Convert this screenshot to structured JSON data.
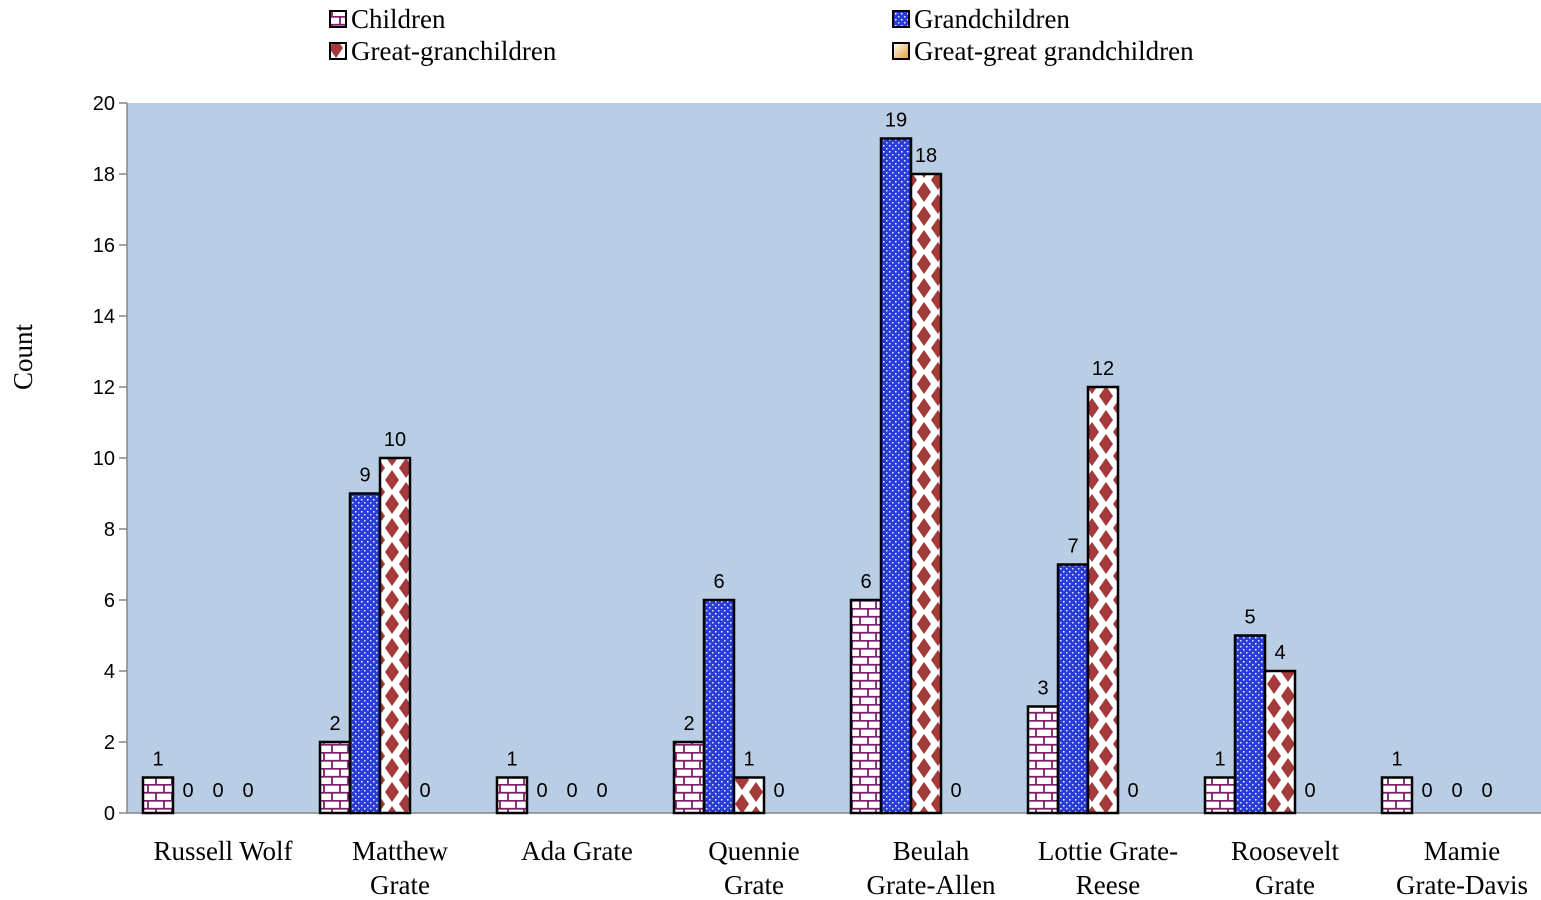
{
  "chart_data": {
    "type": "bar",
    "ylabel": "Count",
    "xlabel": "",
    "ylim": [
      0,
      20
    ],
    "yticks": [
      0,
      2,
      4,
      6,
      8,
      10,
      12,
      14,
      16,
      18,
      20
    ],
    "grid": false,
    "legend_position": "top",
    "plot_background": "#B9CDE5",
    "categories": [
      [
        "Russell Wolf"
      ],
      [
        "Matthew",
        "Grate"
      ],
      [
        "Ada Grate"
      ],
      [
        "Quennie",
        "Grate"
      ],
      [
        "Beulah",
        "Grate-Allen"
      ],
      [
        "Lottie Grate-",
        "Reese"
      ],
      [
        "Roosevelt",
        "Grate"
      ],
      [
        "Mamie",
        "Grate-Davis"
      ]
    ],
    "series": [
      {
        "name": "Children",
        "color": "#7B1F6E",
        "pattern": "brick",
        "values": [
          1,
          2,
          1,
          2,
          6,
          3,
          1,
          1
        ]
      },
      {
        "name": "Grandchildren",
        "color": "#2A3DD6",
        "pattern": "dots",
        "values": [
          0,
          9,
          0,
          6,
          19,
          7,
          5,
          0
        ]
      },
      {
        "name": "Great-granchildren",
        "color": "#A43A3A",
        "pattern": "diamond",
        "values": [
          0,
          10,
          0,
          1,
          18,
          12,
          4,
          0
        ]
      },
      {
        "name": "Great-great grandchildren",
        "color": "#E39B2C",
        "pattern": "gradient",
        "values": [
          0,
          0,
          0,
          0,
          0,
          0,
          0,
          0
        ]
      }
    ]
  }
}
